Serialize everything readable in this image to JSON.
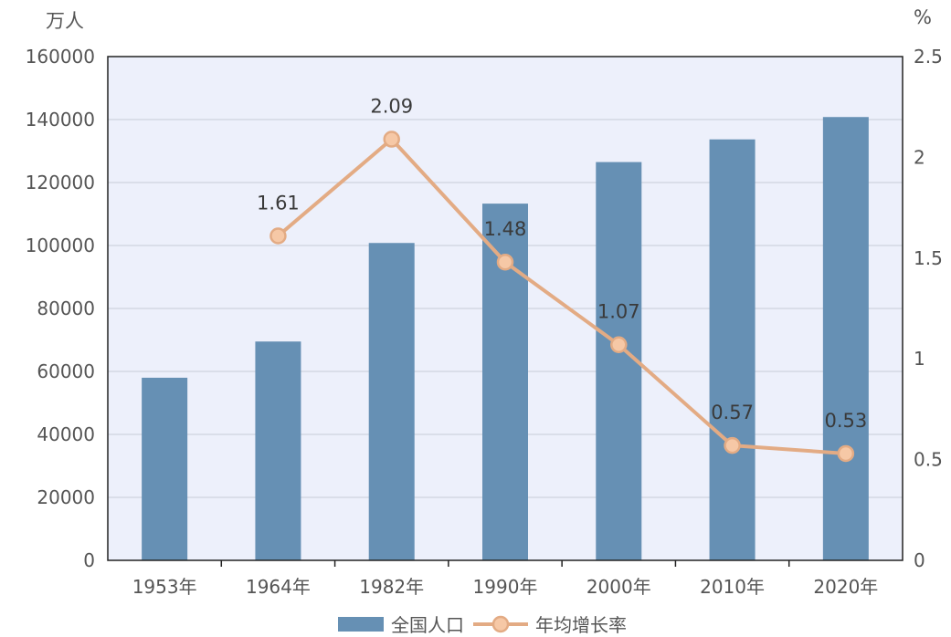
{
  "chart_data": {
    "type": "bar",
    "categories": [
      "1953年",
      "1964年",
      "1982年",
      "1990年",
      "2000年",
      "2010年",
      "2020年"
    ],
    "series": [
      {
        "name": "全国人口",
        "type": "bar",
        "axis": "left",
        "color": "#6690b4",
        "values": [
          58000,
          69500,
          100800,
          113300,
          126500,
          133700,
          140800
        ]
      },
      {
        "name": "年均增长率",
        "type": "line",
        "axis": "right",
        "color": "#e3ab84",
        "values": [
          null,
          1.61,
          2.09,
          1.48,
          1.07,
          0.57,
          0.53
        ],
        "labels": [
          "",
          "1.61",
          "2.09",
          "1.48",
          "1.07",
          "0.57",
          "0.53"
        ]
      }
    ],
    "ylabel_left": "万人",
    "ylabel_right": "%",
    "ylim_left": [
      0,
      160000
    ],
    "ylim_right": [
      0,
      2.5
    ],
    "yticks_left": [
      "0",
      "20000",
      "40000",
      "60000",
      "80000",
      "100000",
      "120000",
      "140000",
      "160000"
    ],
    "yticks_right": [
      "0",
      "0.5",
      "1",
      "1.5",
      "2",
      "2.5"
    ],
    "grid": true,
    "legend": "bottom-center",
    "plot_background": "#edf0fb"
  }
}
